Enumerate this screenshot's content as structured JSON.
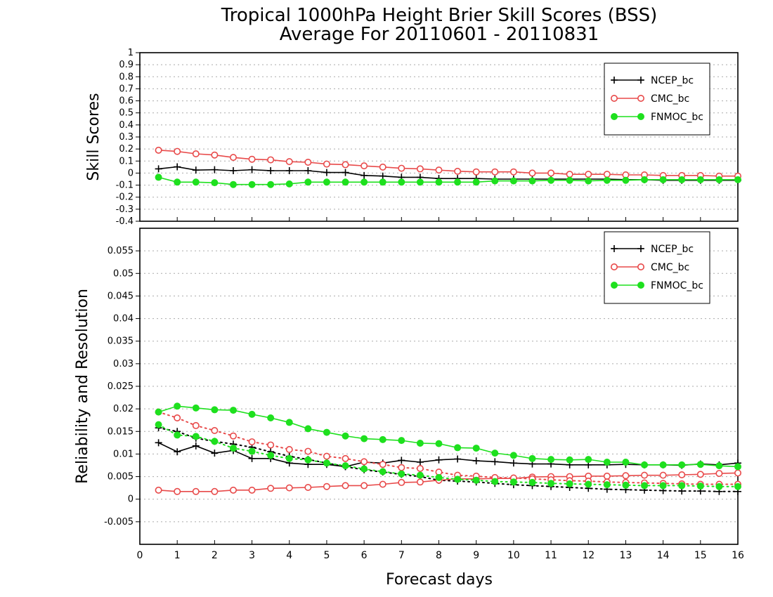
{
  "title_line1": "Tropical 1000hPa Height Brier Skill Scores (BSS)",
  "title_line2": "Average For 20110601 - 20110831",
  "colors": {
    "NCEP_bc": "#000000",
    "CMC_bc": "#e84a4a",
    "FNMOC_bc": "#1ee01e"
  },
  "chart_data": [
    {
      "type": "line",
      "panel": "top",
      "ylabel": "Skill Scores",
      "xlabel": "Forecast days",
      "xlim": [
        0,
        16
      ],
      "ylim": [
        -0.4,
        1
      ],
      "x_ticks": [
        "0",
        "1",
        "2",
        "3",
        "4",
        "5",
        "6",
        "7",
        "8",
        "9",
        "10",
        "11",
        "12",
        "13",
        "14",
        "15",
        "16"
      ],
      "y_ticks": [
        "-0.4",
        "-0.3",
        "-0.2",
        "-0.1",
        "0",
        "0.1",
        "0.2",
        "0.3",
        "0.4",
        "0.5",
        "0.6",
        "0.7",
        "0.8",
        "0.9",
        "1"
      ],
      "grid": true,
      "legend": "top-right",
      "x": [
        0.5,
        1,
        1.5,
        2,
        2.5,
        3,
        3.5,
        4,
        4.5,
        5,
        5.5,
        6,
        6.5,
        7,
        7.5,
        8,
        8.5,
        9,
        9.5,
        10,
        10.5,
        11,
        11.5,
        12,
        12.5,
        13,
        13.5,
        14,
        14.5,
        15,
        15.5,
        16
      ],
      "series": [
        {
          "name": "NCEP_bc",
          "marker": "plus",
          "values": [
            0.035,
            0.052,
            0.025,
            0.028,
            0.02,
            0.028,
            0.02,
            0.02,
            0.02,
            0.005,
            0.005,
            -0.02,
            -0.025,
            -0.035,
            -0.035,
            -0.045,
            -0.045,
            -0.045,
            -0.05,
            -0.05,
            -0.05,
            -0.05,
            -0.05,
            -0.05,
            -0.05,
            -0.055,
            -0.055,
            -0.06,
            -0.06,
            -0.06,
            -0.06,
            -0.06
          ]
        },
        {
          "name": "CMC_bc",
          "marker": "open-circle",
          "values": [
            0.19,
            0.18,
            0.16,
            0.15,
            0.13,
            0.115,
            0.11,
            0.095,
            0.09,
            0.075,
            0.07,
            0.06,
            0.05,
            0.04,
            0.035,
            0.025,
            0.015,
            0.01,
            0.01,
            0.01,
            0.0,
            0.0,
            -0.01,
            -0.01,
            -0.01,
            -0.015,
            -0.015,
            -0.02,
            -0.02,
            -0.02,
            -0.025,
            -0.025
          ]
        },
        {
          "name": "FNMOC_bc",
          "marker": "filled-circle",
          "values": [
            -0.035,
            -0.075,
            -0.075,
            -0.08,
            -0.095,
            -0.095,
            -0.095,
            -0.09,
            -0.075,
            -0.075,
            -0.075,
            -0.075,
            -0.075,
            -0.075,
            -0.075,
            -0.075,
            -0.075,
            -0.075,
            -0.065,
            -0.065,
            -0.065,
            -0.06,
            -0.06,
            -0.065,
            -0.06,
            -0.06,
            -0.055,
            -0.055,
            -0.055,
            -0.055,
            -0.055,
            -0.055
          ]
        }
      ]
    },
    {
      "type": "line",
      "panel": "bottom",
      "ylabel": "Reliability and Resolution",
      "xlabel": "Forecast days",
      "xlim": [
        0,
        16
      ],
      "ylim": [
        -0.01,
        0.06
      ],
      "x_ticks": [
        "0",
        "1",
        "2",
        "3",
        "4",
        "5",
        "6",
        "7",
        "8",
        "9",
        "10",
        "11",
        "12",
        "13",
        "14",
        "15",
        "16"
      ],
      "y_ticks": [
        "-0.005",
        "0",
        "0.005",
        "0.01",
        "0.015",
        "0.02",
        "0.025",
        "0.03",
        "0.035",
        "0.04",
        "0.045",
        "0.05",
        "0.055"
      ],
      "grid": true,
      "legend": "top-right",
      "x": [
        0.5,
        1,
        1.5,
        2,
        2.5,
        3,
        3.5,
        4,
        4.5,
        5,
        5.5,
        6,
        6.5,
        7,
        7.5,
        8,
        8.5,
        9,
        9.5,
        10,
        10.5,
        11,
        11.5,
        12,
        12.5,
        13,
        13.5,
        14,
        14.5,
        15,
        15.5,
        16
      ],
      "series": [
        {
          "name": "NCEP_bc",
          "metric": "resolution",
          "style": "solid",
          "marker": "plus",
          "values": [
            0.0125,
            0.0105,
            0.0118,
            0.0102,
            0.0108,
            0.009,
            0.009,
            0.008,
            0.0077,
            0.0077,
            0.0072,
            0.0082,
            0.008,
            0.0086,
            0.0082,
            0.0087,
            0.0089,
            0.0085,
            0.0083,
            0.008,
            0.0078,
            0.0078,
            0.0076,
            0.0076,
            0.0076,
            0.0077,
            0.0076,
            0.0076,
            0.0075,
            0.0078,
            0.0076,
            0.008
          ]
        },
        {
          "name": "NCEP_bc",
          "metric": "reliability",
          "style": "dotted",
          "marker": "plus",
          "values": [
            0.0158,
            0.015,
            0.0135,
            0.0128,
            0.0122,
            0.0115,
            0.0105,
            0.0095,
            0.0088,
            0.008,
            0.0072,
            0.0065,
            0.006,
            0.0055,
            0.005,
            0.0042,
            0.004,
            0.0038,
            0.0035,
            0.0032,
            0.003,
            0.0028,
            0.0026,
            0.0024,
            0.0022,
            0.0021,
            0.002,
            0.0019,
            0.0018,
            0.0018,
            0.0017,
            0.0017
          ]
        },
        {
          "name": "CMC_bc",
          "metric": "resolution",
          "style": "solid",
          "marker": "open-circle",
          "values": [
            0.002,
            0.0017,
            0.0017,
            0.0017,
            0.002,
            0.002,
            0.0024,
            0.0025,
            0.0026,
            0.0028,
            0.003,
            0.003,
            0.0033,
            0.0037,
            0.0038,
            0.0042,
            0.0045,
            0.0045,
            0.0046,
            0.0046,
            0.0049,
            0.005,
            0.005,
            0.0051,
            0.0051,
            0.0052,
            0.0053,
            0.0053,
            0.0054,
            0.0055,
            0.0057,
            0.0058
          ]
        },
        {
          "name": "CMC_bc",
          "metric": "reliability",
          "style": "dotted",
          "marker": "open-circle",
          "values": [
            0.0193,
            0.018,
            0.0163,
            0.0152,
            0.014,
            0.0127,
            0.012,
            0.011,
            0.0106,
            0.0095,
            0.009,
            0.0083,
            0.0077,
            0.007,
            0.0068,
            0.006,
            0.0053,
            0.0051,
            0.0048,
            0.0047,
            0.0045,
            0.0043,
            0.0041,
            0.004,
            0.0038,
            0.0037,
            0.0036,
            0.0035,
            0.0034,
            0.0033,
            0.0033,
            0.0033
          ]
        },
        {
          "name": "FNMOC_bc",
          "metric": "resolution",
          "style": "solid",
          "marker": "filled-circle",
          "values": [
            0.0193,
            0.0206,
            0.0202,
            0.0198,
            0.0197,
            0.0188,
            0.018,
            0.017,
            0.0156,
            0.0148,
            0.014,
            0.0134,
            0.0132,
            0.013,
            0.0124,
            0.0123,
            0.0114,
            0.0113,
            0.0102,
            0.0097,
            0.009,
            0.0088,
            0.0087,
            0.0088,
            0.0082,
            0.0082,
            0.0076,
            0.0076,
            0.0076,
            0.0077,
            0.0074,
            0.0072
          ]
        },
        {
          "name": "FNMOC_bc",
          "metric": "reliability",
          "style": "dotted",
          "marker": "filled-circle",
          "values": [
            0.0165,
            0.0142,
            0.0139,
            0.0128,
            0.0113,
            0.0106,
            0.0097,
            0.009,
            0.0087,
            0.008,
            0.0074,
            0.0067,
            0.0061,
            0.0056,
            0.0053,
            0.0048,
            0.0044,
            0.0042,
            0.0039,
            0.0038,
            0.0037,
            0.0035,
            0.0034,
            0.0033,
            0.0032,
            0.0031,
            0.003,
            0.003,
            0.003,
            0.0029,
            0.0028,
            0.0028
          ]
        }
      ]
    }
  ]
}
